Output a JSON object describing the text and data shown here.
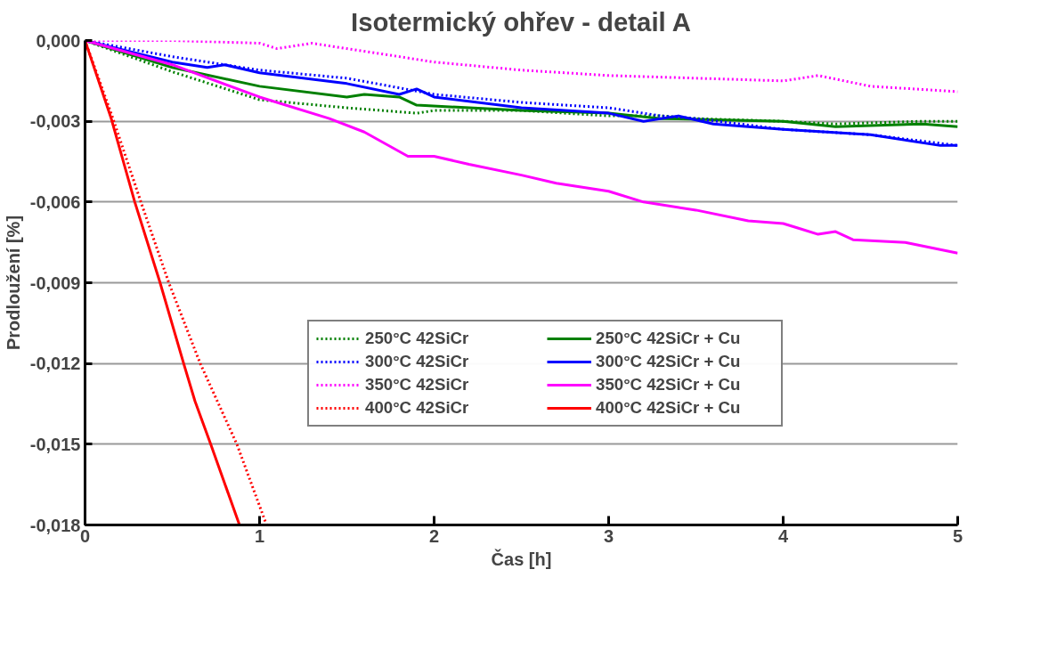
{
  "chart_data": {
    "type": "line",
    "title": "Isotermický ohřev - detail A",
    "xlabel": "Čas [h]",
    "ylabel": "Prodloužení [%]",
    "xlim": [
      0,
      5
    ],
    "ylim": [
      -0.018,
      0
    ],
    "xticks": [
      0,
      1,
      2,
      3,
      4,
      5
    ],
    "yticks": [
      {
        "value": 0,
        "label": "0,000"
      },
      {
        "value": -0.003,
        "label": "-0,003"
      },
      {
        "value": -0.006,
        "label": "-0,006"
      },
      {
        "value": -0.009,
        "label": "-0,009"
      },
      {
        "value": -0.012,
        "label": "-0,012"
      },
      {
        "value": -0.015,
        "label": "-0,015"
      },
      {
        "value": -0.018,
        "label": "-0,018"
      }
    ],
    "grid": "y",
    "legend": "right",
    "marker": "none",
    "series": [
      {
        "name": "250°C 42SiCr",
        "color": "#008000",
        "line_style": "dotted",
        "x": [
          0,
          0.5,
          1,
          1.5,
          1.9,
          2,
          2.5,
          3,
          3.3,
          3.5,
          4,
          4.3,
          4.8,
          5
        ],
        "values": [
          0,
          -0.00116,
          -0.0022,
          -0.0025,
          -0.0027,
          -0.0026,
          -0.0026,
          -0.0028,
          -0.0028,
          -0.0029,
          -0.003,
          -0.0031,
          -0.003,
          -0.003
        ]
      },
      {
        "name": "250°C 42SiCr + Cu",
        "color": "#008000",
        "line_style": "solid",
        "x": [
          0,
          0.5,
          1,
          1.5,
          1.6,
          1.8,
          1.9,
          2.5,
          3,
          3.3,
          4,
          4.3,
          4.8,
          5
        ],
        "values": [
          0,
          -0.001,
          -0.0017,
          -0.0021,
          -0.002,
          -0.0021,
          -0.0024,
          -0.0026,
          -0.0027,
          -0.0029,
          -0.003,
          -0.0032,
          -0.0031,
          -0.0032
        ]
      },
      {
        "name": "300°C 42SiCr",
        "color": "#0000ff",
        "line_style": "dotted",
        "x": [
          0,
          0.5,
          1,
          1.5,
          2,
          2.5,
          3,
          3.3,
          3.5,
          4,
          4.5,
          5
        ],
        "values": [
          0,
          -0.0006,
          -0.0011,
          -0.0014,
          -0.002,
          -0.0023,
          -0.0025,
          -0.0028,
          -0.0029,
          -0.0033,
          -0.0035,
          -0.0039
        ]
      },
      {
        "name": "300°C 42SiCr + Cu",
        "color": "#0000ff",
        "line_style": "solid",
        "x": [
          0,
          0.5,
          0.7,
          0.8,
          1,
          1.5,
          1.8,
          1.9,
          2,
          2.5,
          3,
          3.2,
          3.4,
          3.6,
          4,
          4.5,
          4.9,
          5
        ],
        "values": [
          0,
          -0.0008,
          -0.001,
          -0.0009,
          -0.0012,
          -0.0016,
          -0.002,
          -0.0018,
          -0.0021,
          -0.0025,
          -0.0027,
          -0.003,
          -0.0028,
          -0.0031,
          -0.0033,
          -0.0035,
          -0.0039,
          -0.0039
        ]
      },
      {
        "name": "350°C 42SiCr",
        "color": "#ff00ff",
        "line_style": "dotted",
        "x": [
          0,
          0.5,
          1,
          1.1,
          1.3,
          1.5,
          2,
          2.5,
          3,
          3.5,
          4,
          4.2,
          4.5,
          5
        ],
        "values": [
          0,
          0,
          -0.0001,
          -0.0003,
          -0.0001,
          -0.0003,
          -0.0008,
          -0.0011,
          -0.0013,
          -0.0014,
          -0.0015,
          -0.0013,
          -0.0017,
          -0.0019
        ]
      },
      {
        "name": "350°C 42SiCr + Cu",
        "color": "#ff00ff",
        "line_style": "solid",
        "x": [
          0,
          0.5,
          1,
          1.4,
          1.6,
          1.85,
          2,
          2.2,
          2.5,
          2.7,
          3,
          3.2,
          3.5,
          3.8,
          4,
          4.1,
          4.2,
          4.3,
          4.4,
          4.7,
          5
        ],
        "values": [
          0,
          -0.0009,
          -0.0021,
          -0.0029,
          -0.0034,
          -0.0043,
          -0.0043,
          -0.0046,
          -0.005,
          -0.0053,
          -0.0056,
          -0.006,
          -0.0063,
          -0.0067,
          -0.0068,
          -0.007,
          -0.0072,
          -0.0071,
          -0.0074,
          -0.0075,
          -0.0079
        ]
      },
      {
        "name": "400°C 42SiCr",
        "color": "#ff0000",
        "line_style": "dotted",
        "x": [
          0,
          0.16,
          0.32,
          0.48,
          0.66,
          0.87,
          1.04
        ],
        "values": [
          0,
          -0.0029,
          -0.006,
          -0.009,
          -0.012,
          -0.015,
          -0.018
        ]
      },
      {
        "name": "400°C 42SiCr + Cu",
        "color": "#ff0000",
        "line_style": "solid",
        "x": [
          0,
          0.15,
          0.285,
          0.43,
          0.565,
          0.63,
          0.72,
          0.885
        ],
        "values": [
          0,
          -0.0029,
          -0.006,
          -0.009,
          -0.012,
          -0.0134,
          -0.015,
          -0.018
        ]
      }
    ]
  }
}
